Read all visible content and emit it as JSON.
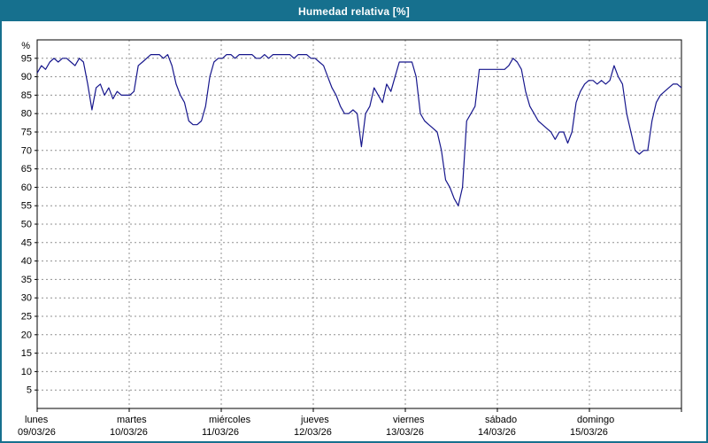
{
  "window": {
    "title": "Humedad relativa [%]"
  },
  "chart_data": {
    "type": "line",
    "title": "Humedad relativa [%]",
    "ylabel": "%",
    "xlabel": "",
    "ylim": [
      0,
      100
    ],
    "yticks": [
      5,
      10,
      15,
      20,
      25,
      30,
      35,
      40,
      45,
      50,
      55,
      60,
      65,
      70,
      75,
      80,
      85,
      90,
      95
    ],
    "grid": true,
    "legend": "none",
    "colors": {
      "frame": "#16708e",
      "titlebar": "#16708e",
      "line": "#16168c",
      "grid": "#909090"
    },
    "days": [
      {
        "name": "lunes",
        "date": "09/03/26"
      },
      {
        "name": "martes",
        "date": "10/03/26"
      },
      {
        "name": "miércoles",
        "date": "11/03/26"
      },
      {
        "name": "jueves",
        "date": "12/03/26"
      },
      {
        "name": "viernes",
        "date": "13/03/26"
      },
      {
        "name": "sábado",
        "date": "14/03/26"
      },
      {
        "name": "domingo",
        "date": "15/03/26"
      }
    ],
    "values": [
      91,
      93,
      92,
      94,
      95,
      94,
      95,
      95,
      94,
      93,
      95,
      94,
      88,
      81,
      87,
      88,
      85,
      87,
      84,
      86,
      85,
      85,
      85,
      86,
      93,
      94,
      95,
      96,
      96,
      96,
      95,
      96,
      93,
      88,
      85,
      83,
      78,
      77,
      77,
      78,
      82,
      90,
      94,
      95,
      95,
      96,
      96,
      95,
      96,
      96,
      96,
      96,
      95,
      95,
      96,
      95,
      96,
      96,
      96,
      96,
      96,
      95,
      96,
      96,
      96,
      95,
      95,
      94,
      93,
      90,
      87,
      85,
      82,
      80,
      80,
      81,
      80,
      71,
      80,
      82,
      87,
      85,
      83,
      88,
      86,
      90,
      94,
      94,
      94,
      94,
      90,
      80,
      78,
      77,
      76,
      75,
      70,
      62,
      60,
      57,
      55,
      60,
      78,
      80,
      82,
      92,
      92,
      92,
      92,
      92,
      92,
      92,
      93,
      95,
      94,
      92,
      86,
      82,
      80,
      78,
      77,
      76,
      75,
      73,
      75,
      75,
      72,
      75,
      83,
      86,
      88,
      89,
      89,
      88,
      89,
      88,
      89,
      93,
      90,
      88,
      80,
      75,
      70,
      69,
      70,
      70,
      78,
      83,
      85,
      86,
      87,
      88,
      88,
      87
    ]
  }
}
